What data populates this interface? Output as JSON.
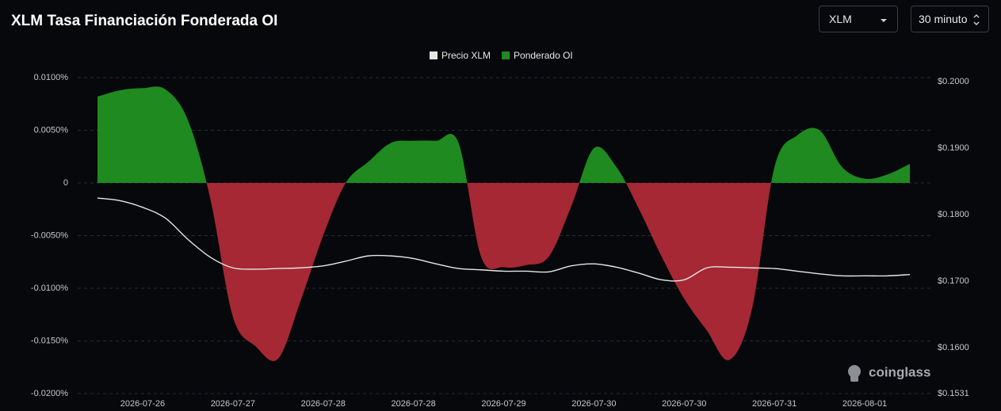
{
  "chart_data": {
    "type": "area",
    "title": "XLM Tasa Financiación Fonderada OI",
    "categories": [
      null,
      null,
      "2026-07-26",
      null,
      null,
      null,
      "2026-07-27",
      null,
      null,
      null,
      "2026-07-28",
      null,
      null,
      null,
      "2026-07-28",
      null,
      null,
      null,
      "2026-07-29",
      null,
      null,
      null,
      "2026-07-30",
      null,
      null,
      null,
      "2026-07-30",
      null,
      null,
      null,
      "2026-07-31",
      null,
      null,
      null,
      "2026-08-01",
      null,
      null
    ],
    "series": [
      {
        "name": "Precio XLM",
        "color": "#e6e6e6",
        "axis": "y2",
        "values": [
          0.1825,
          0.1821,
          0.1811,
          0.1795,
          0.1763,
          0.1736,
          0.172,
          0.1718,
          0.1719,
          0.172,
          0.1723,
          0.173,
          0.1738,
          0.1738,
          0.1734,
          0.1726,
          0.1719,
          0.1717,
          0.1715,
          0.1715,
          0.1714,
          0.1723,
          0.1726,
          0.1721,
          0.1712,
          0.1702,
          0.1702,
          0.172,
          0.1721,
          0.172,
          0.1719,
          0.1715,
          0.1711,
          0.1708,
          0.1708,
          0.1708,
          0.171
        ]
      },
      {
        "name": "Ponderado OI",
        "color": "#1f8a1f",
        "negative_color": "#a52834",
        "values": [
          0.0082,
          0.0088,
          0.009,
          0.0089,
          0.006,
          -0.0015,
          -0.0127,
          -0.0155,
          -0.0167,
          -0.0112,
          -0.005,
          0.0,
          0.002,
          0.0038,
          0.004,
          0.004,
          0.0038,
          -0.007,
          -0.008,
          -0.0078,
          -0.007,
          -0.0022,
          0.0033,
          0.0015,
          -0.0025,
          -0.007,
          -0.011,
          -0.014,
          -0.0168,
          -0.012,
          0.0015,
          0.0045,
          0.005,
          0.0015,
          0.0004,
          0.0008,
          0.0018
        ]
      }
    ],
    "ylim": [
      -0.02,
      0.01
    ],
    "yticks": [
      {
        "value": 0.01,
        "label": "0.0100%"
      },
      {
        "value": 0.005,
        "label": "0.0050%"
      },
      0,
      {
        "value": -0.005,
        "label": "-0.0050%"
      },
      {
        "value": -0.01,
        "label": "-0.0100%"
      },
      {
        "value": -0.015,
        "label": "-0.0150%"
      },
      {
        "value": -0.02,
        "label": "-0.0200%"
      }
    ],
    "y2lim": [
      0.1531,
      0.2006
    ],
    "y2ticks": [
      {
        "value": 0.2,
        "label": "$0.2000"
      },
      {
        "value": 0.19,
        "label": "$0.1900"
      },
      {
        "value": 0.18,
        "label": "$0.1800"
      },
      {
        "value": 0.17,
        "label": "$0.1700"
      },
      {
        "value": 0.16,
        "label": "$0.1600"
      },
      {
        "value": 0.1531,
        "label": "$0.1531"
      }
    ],
    "grid": true,
    "legend": "top"
  },
  "controls": {
    "symbol": "XLM",
    "interval": "30 minuto"
  },
  "watermark": "coinglass"
}
